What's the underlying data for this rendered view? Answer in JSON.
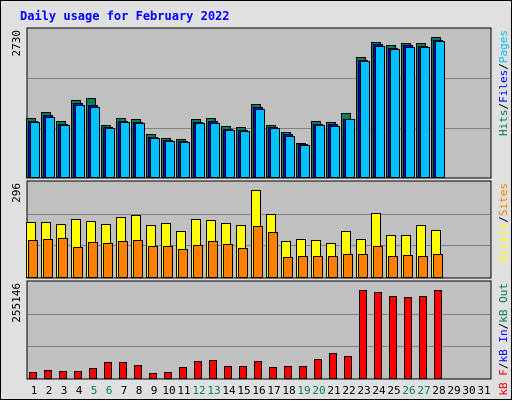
{
  "chart_data": {
    "type": "bar",
    "title": "Daily usage for February 2022",
    "categories": [
      "1",
      "2",
      "3",
      "4",
      "5",
      "6",
      "7",
      "8",
      "9",
      "10",
      "11",
      "12",
      "13",
      "14",
      "15",
      "16",
      "17",
      "18",
      "19",
      "20",
      "21",
      "22",
      "23",
      "24",
      "25",
      "26",
      "27",
      "28",
      "29",
      "30",
      "31"
    ],
    "weekend_days": [
      5,
      6,
      12,
      13,
      19,
      20,
      26,
      27
    ],
    "colors": {
      "hits": "#00805c",
      "files": "#0000ff",
      "pages": "#00c0ff",
      "visits": "#ffff00",
      "sites": "#ff8000",
      "kbytes": "#ff0000",
      "title": "#0000ff",
      "plot_bg": "#c0c0c0",
      "weekday_label": "#000000",
      "weekend_label": "#00805c"
    },
    "panels": [
      {
        "id": "hits_files_pages",
        "max_label": "2730",
        "ymax": 2730,
        "legend": [
          {
            "text": "Hits",
            "color": "#00805c"
          },
          {
            "text": "/",
            "color": "#000000"
          },
          {
            "text": "Files",
            "color": "#0000ff"
          },
          {
            "text": "/",
            "color": "#000000"
          },
          {
            "text": "Pages",
            "color": "#00c0ff"
          }
        ],
        "series": [
          {
            "name": "Hits",
            "color": "#00805c",
            "values": [
              1150,
              1260,
              1100,
              1500,
              1540,
              1010,
              1150,
              1130,
              830,
              760,
              740,
              1140,
              1160,
              1000,
              970,
              1420,
              1020,
              870,
              670,
              1100,
              1080,
              1250,
              2340,
              2640,
              2580,
              2620,
              2620,
              2730,
              0,
              0,
              0
            ]
          },
          {
            "name": "Files",
            "color": "#0000ff",
            "values": [
              1090,
              1200,
              1040,
              1440,
              1400,
              980,
              1100,
              1080,
              780,
              730,
              700,
              1080,
              1090,
              940,
              920,
              1360,
              970,
              830,
              640,
              1040,
              1030,
              1140,
              2290,
              2590,
              2510,
              2570,
              2560,
              2680,
              0,
              0,
              0
            ]
          },
          {
            "name": "Pages",
            "color": "#00c0ff",
            "values": [
              1070,
              1170,
              1010,
              1410,
              1370,
              950,
              1070,
              1060,
              760,
              710,
              680,
              1050,
              1060,
              910,
              890,
              1330,
              950,
              800,
              620,
              1010,
              1000,
              1130,
              2270,
              2560,
              2490,
              2540,
              2540,
              2660,
              0,
              0,
              0
            ]
          }
        ]
      },
      {
        "id": "visits_sites",
        "max_label": "296",
        "ymax": 296,
        "legend": [
          {
            "text": "Visits",
            "color": "#ffff00"
          },
          {
            "text": "/",
            "color": "#000000"
          },
          {
            "text": "Sites",
            "color": "#ff8000"
          }
        ],
        "series": [
          {
            "name": "Visits",
            "color": "#ffff00",
            "values": [
              186,
              186,
              180,
              196,
              190,
              180,
              203,
              212,
              178,
              183,
              155,
              199,
              194,
              184,
              177,
              296,
              216,
              121,
              129,
              125,
              117,
              156,
              130,
              217,
              143,
              143,
              176,
              159,
              0,
              0,
              0
            ]
          },
          {
            "name": "Sites",
            "color": "#ff8000",
            "values": [
              127,
              130,
              134,
              103,
              118,
              115,
              124,
              125,
              105,
              104,
              94,
              110,
              123,
              113,
              97,
              175,
              152,
              67,
              71,
              71,
              73,
              78,
              78,
              104,
              73,
              74,
              71,
              78,
              0,
              0,
              0
            ]
          }
        ]
      },
      {
        "id": "kbytes",
        "max_label": "255146",
        "ymax": 255146,
        "legend": [
          {
            "text": "kB F",
            "color": "#ff0000"
          },
          {
            "text": "/",
            "color": "#000000"
          },
          {
            "text": "kB In",
            "color": "#0000ff"
          },
          {
            "text": "/",
            "color": "#000000"
          },
          {
            "text": "kB Out",
            "color": "#00805c"
          }
        ],
        "series": [
          {
            "name": "kB F",
            "color": "#ff0000",
            "values": [
              18000,
              24000,
              21000,
              19000,
              28000,
              47000,
              45000,
              37000,
              14000,
              16000,
              31000,
              50000,
              53000,
              36000,
              36000,
              48000,
              33000,
              35000,
              36000,
              55000,
              73000,
              63000,
              255146,
              250000,
              239000,
              234000,
              237000,
              255146,
              0,
              0,
              0
            ]
          }
        ]
      }
    ]
  }
}
